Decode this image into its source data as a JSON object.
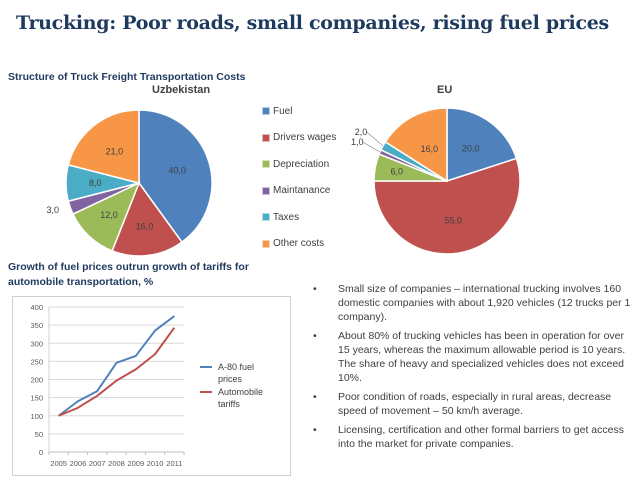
{
  "slide": {
    "title": "Trucking:  Poor roads, small companies, rising fuel prices",
    "costs_heading": "Structure of Truck Freight Transportation Costs",
    "growth_heading_line1": "Growth of fuel prices outrun growth of tariffs for",
    "growth_heading_line2": "automobile transportation, %",
    "bullets": [
      "Small size of companies – international trucking involves 160 domestic companies with about 1,920 vehicles (12 trucks per 1 company).",
      "About 80% of trucking vehicles has been in operation for over 15 years, whereas  the maximum allowable period is 10 years. The share of heavy and specialized vehicles does not exceed 10%.",
      "Poor condition of roads, especially in rural areas, decrease speed of movement – 50 km/h average.",
      "Licensing, certification and other formal barriers to get access into the market for private companies."
    ],
    "bullet_symbol": "•"
  },
  "chart_data": [
    {
      "type": "pie",
      "title": "Uzbekistan",
      "categories": [
        "Fuel",
        "Drivers wages",
        "Depreciation",
        "Maintanance",
        "Taxes",
        "Other costs"
      ],
      "values": [
        40.0,
        16.0,
        12.0,
        3.0,
        8.0,
        21.0
      ],
      "labels": [
        "40,0",
        "16,0",
        "12,0",
        "3,0",
        "8,0",
        "21,0"
      ],
      "colors": [
        "#4f81bd",
        "#c0504d",
        "#9bbb59",
        "#8064a2",
        "#4bacc6",
        "#f79646"
      ],
      "legend": "right"
    },
    {
      "type": "pie",
      "title": "EU",
      "categories": [
        "Fuel",
        "Drivers wages",
        "Depreciation",
        "Maintanance",
        "Taxes",
        "Other costs"
      ],
      "values": [
        20.0,
        55.0,
        6.0,
        1.0,
        2.0,
        16.0
      ],
      "labels": [
        "20,0",
        "55,0",
        "6,0",
        "1,0",
        "2,0",
        "16,0"
      ],
      "colors": [
        "#4f81bd",
        "#c0504d",
        "#9bbb59",
        "#8064a2",
        "#4bacc6",
        "#f79646"
      ],
      "legend": "shared"
    },
    {
      "type": "line",
      "title": "Growth of fuel prices outrun growth of tariffs for automobile transportation, %",
      "x": [
        "2005",
        "2006",
        "2007",
        "2008",
        "2009",
        "2010",
        "2011"
      ],
      "series": [
        {
          "name": "A-80 fuel prices",
          "values": [
            100,
            140,
            168,
            246,
            265,
            335,
            375
          ],
          "color": "#4f81bd"
        },
        {
          "name": "Automobile tariffs",
          "values": [
            100,
            122,
            155,
            197,
            228,
            270,
            343
          ],
          "color": "#c0504d"
        }
      ],
      "yticks": [
        "0",
        "50",
        "100",
        "150",
        "200",
        "250",
        "300",
        "350",
        "400"
      ],
      "ylim": [
        0,
        400
      ],
      "grid": true,
      "legend": "right"
    }
  ]
}
